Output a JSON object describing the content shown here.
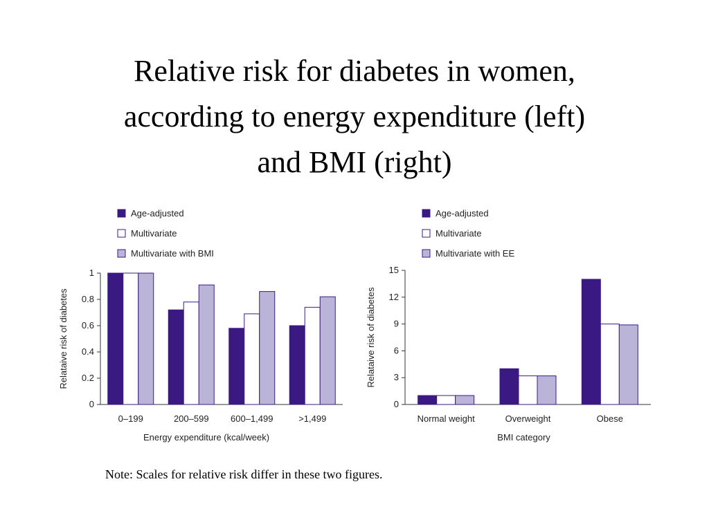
{
  "title": {
    "line1": "Relative risk for diabetes in women,",
    "line2": "according to energy expenditure (left)",
    "line3": "and BMI (right)"
  },
  "note": "Note: Scales for relative risk differ in these two figures.",
  "colors": {
    "age_adjusted": "#3a1a82",
    "multivariate": "#ffffff",
    "multivariate_adjusted": "#b9b4d8",
    "outline": "#3a1a82"
  },
  "chart_data": [
    {
      "type": "bar",
      "xlabel": "Energy expenditure (kcal/week)",
      "ylabel": "Relataive risk of diabetes",
      "categories": [
        "0–199",
        "200–599",
        "600–1,499",
        ">1,499"
      ],
      "ylim": [
        0,
        1
      ],
      "yticks": [
        0,
        0.2,
        0.4,
        0.6,
        0.8,
        1
      ],
      "ytick_labels": [
        "0",
        "0.2",
        "0.4",
        "0.6",
        "0.8",
        "1"
      ],
      "grid": false,
      "legend": "top-left",
      "series": [
        {
          "name": "Age-adjusted",
          "values": [
            1.0,
            0.72,
            0.58,
            0.6
          ]
        },
        {
          "name": "Multivariate",
          "values": [
            1.0,
            0.78,
            0.69,
            0.74
          ]
        },
        {
          "name": "Multivariate with BMI",
          "values": [
            1.0,
            0.91,
            0.86,
            0.82
          ]
        }
      ]
    },
    {
      "type": "bar",
      "xlabel": "BMI category",
      "ylabel": "Relataive risk of diabetes",
      "categories": [
        "Normal weight",
        "Overweight",
        "Obese"
      ],
      "ylim": [
        0,
        15
      ],
      "yticks": [
        0,
        3,
        6,
        9,
        12,
        15
      ],
      "ytick_labels": [
        "0",
        "3",
        "6",
        "9",
        "12",
        "15"
      ],
      "grid": false,
      "legend": "top-left",
      "series": [
        {
          "name": "Age-adjusted",
          "values": [
            1.0,
            4.0,
            14.0
          ]
        },
        {
          "name": "Multivariate",
          "values": [
            1.0,
            3.2,
            9.0
          ]
        },
        {
          "name": "Multivariate with EE",
          "values": [
            1.0,
            3.2,
            8.9
          ]
        }
      ]
    }
  ]
}
